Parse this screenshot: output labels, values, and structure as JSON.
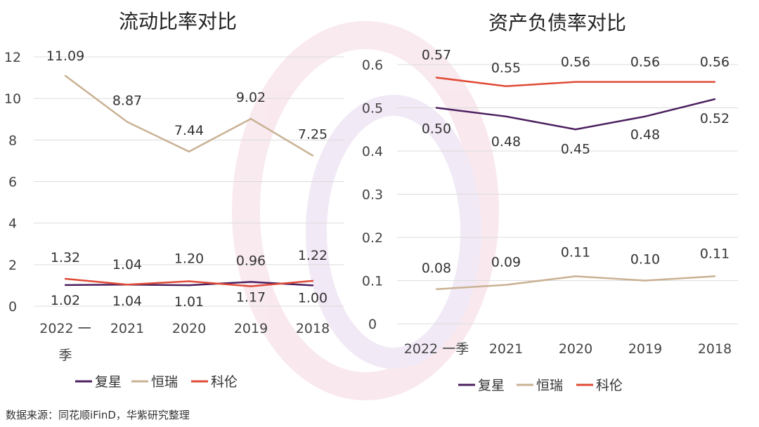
{
  "chart_data": [
    {
      "type": "line",
      "title": "流动比率对比",
      "categories": [
        "2022一季",
        "2021",
        "2020",
        "2019",
        "2018"
      ],
      "category_labels": [
        [
          "2022 一",
          "季"
        ],
        [
          "2021"
        ],
        [
          "2020"
        ],
        [
          "2019"
        ],
        [
          "2018"
        ]
      ],
      "ylim": [
        0,
        12
      ],
      "yticks": [
        0,
        2,
        4,
        6,
        8,
        10,
        12
      ],
      "ytick_labels": [
        "0",
        "2",
        "4",
        "6",
        "8",
        "10",
        "12"
      ],
      "grid": true,
      "legend_position": "bottom",
      "series": [
        {
          "name": "复星",
          "color": "#4b1f5e",
          "values": [
            1.02,
            1.04,
            1.01,
            1.17,
            1.0
          ],
          "labels": [
            "1.02",
            "1.04",
            "1.01",
            "1.17",
            "1.00"
          ]
        },
        {
          "name": "恒瑞",
          "color": "#c9b193",
          "values": [
            11.09,
            8.87,
            7.44,
            9.02,
            7.25
          ],
          "labels": [
            "11.09",
            "8.87",
            "7.44",
            "9.02",
            "7.25"
          ]
        },
        {
          "name": "科伦",
          "color": "#e04a36",
          "values": [
            1.32,
            1.04,
            1.2,
            0.96,
            1.22
          ],
          "labels": [
            "1.32",
            "1.04",
            "1.20",
            "0.96",
            "1.22"
          ]
        }
      ]
    },
    {
      "type": "line",
      "title": "资产负债率对比",
      "categories": [
        "2022一季",
        "2021",
        "2020",
        "2019",
        "2018"
      ],
      "category_labels": [
        [
          "2022 一季"
        ],
        [
          "2021"
        ],
        [
          "2020"
        ],
        [
          "2019"
        ],
        [
          "2018"
        ]
      ],
      "ylim": [
        0,
        0.6
      ],
      "yticks": [
        0,
        0.1,
        0.2,
        0.3,
        0.4,
        0.5,
        0.6
      ],
      "ytick_labels": [
        "0",
        "0.1",
        "0.2",
        "0.3",
        "0.4",
        "0.5",
        "0.6"
      ],
      "grid": true,
      "legend_position": "bottom",
      "series": [
        {
          "name": "复星",
          "color": "#4b1f5e",
          "values": [
            0.5,
            0.48,
            0.45,
            0.48,
            0.52
          ],
          "labels": [
            "0.50",
            "0.48",
            "0.45",
            "0.48",
            "0.52"
          ]
        },
        {
          "name": "恒瑞",
          "color": "#c9b193",
          "values": [
            0.08,
            0.09,
            0.11,
            0.1,
            0.11
          ],
          "labels": [
            "0.08",
            "0.09",
            "0.11",
            "0.10",
            "0.11"
          ]
        },
        {
          "name": "科伦",
          "color": "#e04a36",
          "values": [
            0.57,
            0.55,
            0.56,
            0.56,
            0.56
          ],
          "labels": [
            "0.57",
            "0.55",
            "0.56",
            "0.56",
            "0.56"
          ]
        }
      ]
    }
  ],
  "source": "数据来源：同花顺iFinD，华紫研究整理"
}
